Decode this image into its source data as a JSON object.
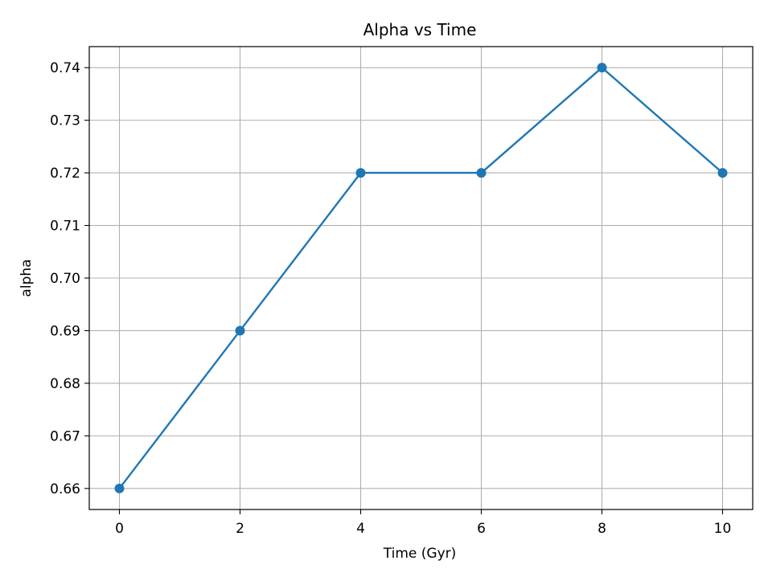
{
  "chart_data": {
    "type": "line",
    "title": "Alpha vs Time",
    "xlabel": "Time (Gyr)",
    "ylabel": "alpha",
    "x": [
      0,
      2,
      4,
      6,
      8,
      10
    ],
    "series": [
      {
        "values": [
          0.66,
          0.69,
          0.72,
          0.72,
          0.74,
          0.72
        ]
      }
    ],
    "xlim": [
      -0.5,
      10.5
    ],
    "ylim": [
      0.656,
      0.744
    ],
    "xticks": [
      0,
      2,
      4,
      6,
      8,
      10
    ],
    "yticks": [
      0.66,
      0.67,
      0.68,
      0.69,
      0.7,
      0.71,
      0.72,
      0.73,
      0.74
    ],
    "ytick_labels": [
      "0.66",
      "0.67",
      "0.68",
      "0.69",
      "0.70",
      "0.71",
      "0.72",
      "0.73",
      "0.74"
    ],
    "grid": true,
    "marker": "circle",
    "line_color": "#1f77b4",
    "grid_color": "#b0b0b0"
  }
}
